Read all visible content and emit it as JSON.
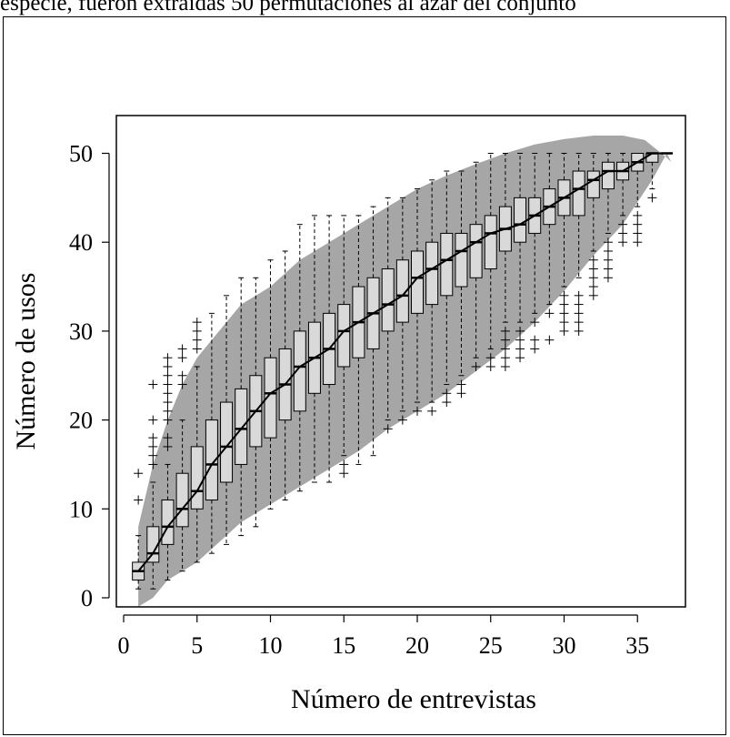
{
  "caption": "especie, fueron extraídas 50 permutaciones al azar del conjunto",
  "chart_data": {
    "type": "box",
    "xlabel": "Número de entrevistas",
    "ylabel": "Número de usos",
    "xlim": [
      0,
      38
    ],
    "ylim": [
      0,
      52
    ],
    "xticks": [
      0,
      5,
      10,
      15,
      20,
      25,
      30,
      35
    ],
    "yticks": [
      0,
      10,
      20,
      30,
      40,
      50
    ],
    "grid": false,
    "colors": {
      "band": "#a6a6a6",
      "box": "#d9d9d9",
      "line": "#000000"
    },
    "band": {
      "upper": [
        [
          1,
          8
        ],
        [
          2,
          15
        ],
        [
          3,
          20
        ],
        [
          4,
          24
        ],
        [
          5,
          27
        ],
        [
          6,
          29
        ],
        [
          7,
          31
        ],
        [
          8,
          33
        ],
        [
          9,
          34
        ],
        [
          10,
          35
        ],
        [
          12,
          38
        ],
        [
          14,
          40
        ],
        [
          16,
          42
        ],
        [
          18,
          44
        ],
        [
          20,
          46
        ],
        [
          22,
          47.5
        ],
        [
          24,
          48.8
        ],
        [
          26,
          50
        ],
        [
          28,
          51
        ],
        [
          30,
          51.6
        ],
        [
          32,
          52
        ],
        [
          34,
          52
        ],
        [
          35.5,
          51.5
        ],
        [
          37,
          49.5
        ]
      ],
      "lower": [
        [
          1,
          -1
        ],
        [
          2,
          0
        ],
        [
          3,
          2
        ],
        [
          4,
          3
        ],
        [
          5,
          4
        ],
        [
          6,
          5.5
        ],
        [
          7,
          7
        ],
        [
          8,
          8.5
        ],
        [
          9,
          9.5
        ],
        [
          10,
          10.5
        ],
        [
          12,
          12.5
        ],
        [
          14,
          14.5
        ],
        [
          16,
          16.5
        ],
        [
          18,
          19
        ],
        [
          20,
          21
        ],
        [
          22,
          23
        ],
        [
          24,
          25.5
        ],
        [
          26,
          28
        ],
        [
          28,
          31
        ],
        [
          30,
          34.5
        ],
        [
          32,
          38.5
        ],
        [
          34,
          42
        ],
        [
          36,
          47
        ],
        [
          37,
          50
        ]
      ]
    },
    "boxes": [
      {
        "x": 1,
        "min": 1,
        "q1": 2,
        "median": 3,
        "q3": 4,
        "max": 7,
        "outliers": [
          11,
          14
        ]
      },
      {
        "x": 2,
        "min": 1,
        "q1": 4,
        "median": 5,
        "q3": 8,
        "max": 13,
        "outliers": [
          15,
          16,
          17,
          18,
          20,
          24
        ]
      },
      {
        "x": 3,
        "min": 2,
        "q1": 6,
        "median": 8,
        "q3": 11,
        "max": 15,
        "outliers": [
          17,
          18,
          20,
          21,
          22,
          23,
          24,
          25,
          26,
          27
        ]
      },
      {
        "x": 4,
        "min": 3,
        "q1": 8,
        "median": 10,
        "q3": 14,
        "max": 20,
        "outliers": [
          24,
          25,
          27,
          28
        ]
      },
      {
        "x": 5,
        "min": 4,
        "q1": 10,
        "median": 12,
        "q3": 17,
        "max": 26,
        "outliers": [
          28,
          29,
          30,
          31
        ]
      },
      {
        "x": 6,
        "min": 5,
        "q1": 11,
        "median": 15,
        "q3": 20,
        "max": 32,
        "outliers": []
      },
      {
        "x": 7,
        "min": 6,
        "q1": 13,
        "median": 17,
        "q3": 22,
        "max": 34,
        "outliers": []
      },
      {
        "x": 8,
        "min": 7,
        "q1": 15,
        "median": 19,
        "q3": 23.5,
        "max": 36,
        "outliers": []
      },
      {
        "x": 9,
        "min": 8,
        "q1": 17,
        "median": 21,
        "q3": 25,
        "max": 36,
        "outliers": []
      },
      {
        "x": 10,
        "min": 10,
        "q1": 18,
        "median": 23,
        "q3": 27,
        "max": 38,
        "outliers": []
      },
      {
        "x": 11,
        "min": 11,
        "q1": 20,
        "median": 24,
        "q3": 28,
        "max": 39,
        "outliers": []
      },
      {
        "x": 12,
        "min": 12,
        "q1": 21,
        "median": 26,
        "q3": 30,
        "max": 42,
        "outliers": []
      },
      {
        "x": 13,
        "min": 13,
        "q1": 23,
        "median": 27,
        "q3": 31,
        "max": 43,
        "outliers": []
      },
      {
        "x": 14,
        "min": 13,
        "q1": 24,
        "median": 28,
        "q3": 32,
        "max": 43,
        "outliers": []
      },
      {
        "x": 15,
        "min": 16,
        "q1": 26,
        "median": 30,
        "q3": 33,
        "max": 43,
        "outliers": [
          14,
          15
        ]
      },
      {
        "x": 16,
        "min": 15,
        "q1": 27,
        "median": 31,
        "q3": 35,
        "max": 43,
        "outliers": []
      },
      {
        "x": 17,
        "min": 16,
        "q1": 28,
        "median": 32,
        "q3": 36,
        "max": 44,
        "outliers": []
      },
      {
        "x": 18,
        "min": 20,
        "q1": 30,
        "median": 33,
        "q3": 37,
        "max": 45,
        "outliers": [
          19
        ]
      },
      {
        "x": 19,
        "min": 21,
        "q1": 31,
        "median": 34,
        "q3": 38,
        "max": 45,
        "outliers": [
          20
        ]
      },
      {
        "x": 20,
        "min": 22,
        "q1": 32,
        "median": 36,
        "q3": 39,
        "max": 46,
        "outliers": [
          21
        ]
      },
      {
        "x": 21,
        "min": 22,
        "q1": 33,
        "median": 37,
        "q3": 40,
        "max": 47,
        "outliers": [
          21
        ]
      },
      {
        "x": 22,
        "min": 24,
        "q1": 34,
        "median": 38,
        "q3": 41,
        "max": 48,
        "outliers": [
          22,
          23
        ]
      },
      {
        "x": 23,
        "min": 25,
        "q1": 35,
        "median": 39,
        "q3": 41,
        "max": 48,
        "outliers": [
          23,
          24
        ]
      },
      {
        "x": 24,
        "min": 27,
        "q1": 36,
        "median": 40,
        "q3": 42,
        "max": 49,
        "outliers": [
          26
        ]
      },
      {
        "x": 25,
        "min": 28,
        "q1": 37,
        "median": 41,
        "q3": 43,
        "max": 50,
        "outliers": [
          26,
          27
        ]
      },
      {
        "x": 26,
        "min": 31,
        "q1": 39,
        "median": 41.5,
        "q3": 44,
        "max": 50,
        "outliers": [
          26,
          27,
          28,
          29,
          30
        ]
      },
      {
        "x": 27,
        "min": 31,
        "q1": 40,
        "median": 42,
        "q3": 45,
        "max": 50,
        "outliers": [
          27,
          28,
          29,
          30
        ]
      },
      {
        "x": 28,
        "min": 32,
        "q1": 41,
        "median": 43,
        "q3": 45,
        "max": 50,
        "outliers": [
          28,
          29,
          31
        ]
      },
      {
        "x": 29,
        "min": 33,
        "q1": 42,
        "median": 44,
        "q3": 46,
        "max": 50,
        "outliers": [
          29,
          32
        ]
      },
      {
        "x": 30,
        "min": 35,
        "q1": 43,
        "median": 45,
        "q3": 47,
        "max": 50,
        "outliers": [
          30,
          31,
          32,
          33,
          34
        ]
      },
      {
        "x": 31,
        "min": 36,
        "q1": 43,
        "median": 46,
        "q3": 48,
        "max": 50,
        "outliers": [
          30,
          31,
          32,
          33,
          34
        ]
      },
      {
        "x": 32,
        "min": 39,
        "q1": 45,
        "median": 47,
        "q3": 48,
        "max": 50,
        "outliers": [
          34,
          35,
          36,
          37,
          38
        ]
      },
      {
        "x": 33,
        "min": 41,
        "q1": 46,
        "median": 48,
        "q3": 49,
        "max": 50,
        "outliers": [
          36,
          37,
          38,
          39,
          40
        ]
      },
      {
        "x": 34,
        "min": 43,
        "q1": 47,
        "median": 48,
        "q3": 49,
        "max": 50,
        "outliers": [
          40,
          41,
          42
        ]
      },
      {
        "x": 35,
        "min": 44,
        "q1": 48,
        "median": 49,
        "q3": 50,
        "max": 50,
        "outliers": [
          40,
          41,
          42,
          43
        ]
      },
      {
        "x": 36,
        "min": 46,
        "q1": 49,
        "median": 50,
        "q3": 50,
        "max": 50,
        "outliers": [
          45
        ]
      },
      {
        "x": 37,
        "min": 50,
        "q1": 50,
        "median": 50,
        "q3": 50,
        "max": 50,
        "outliers": []
      }
    ]
  }
}
